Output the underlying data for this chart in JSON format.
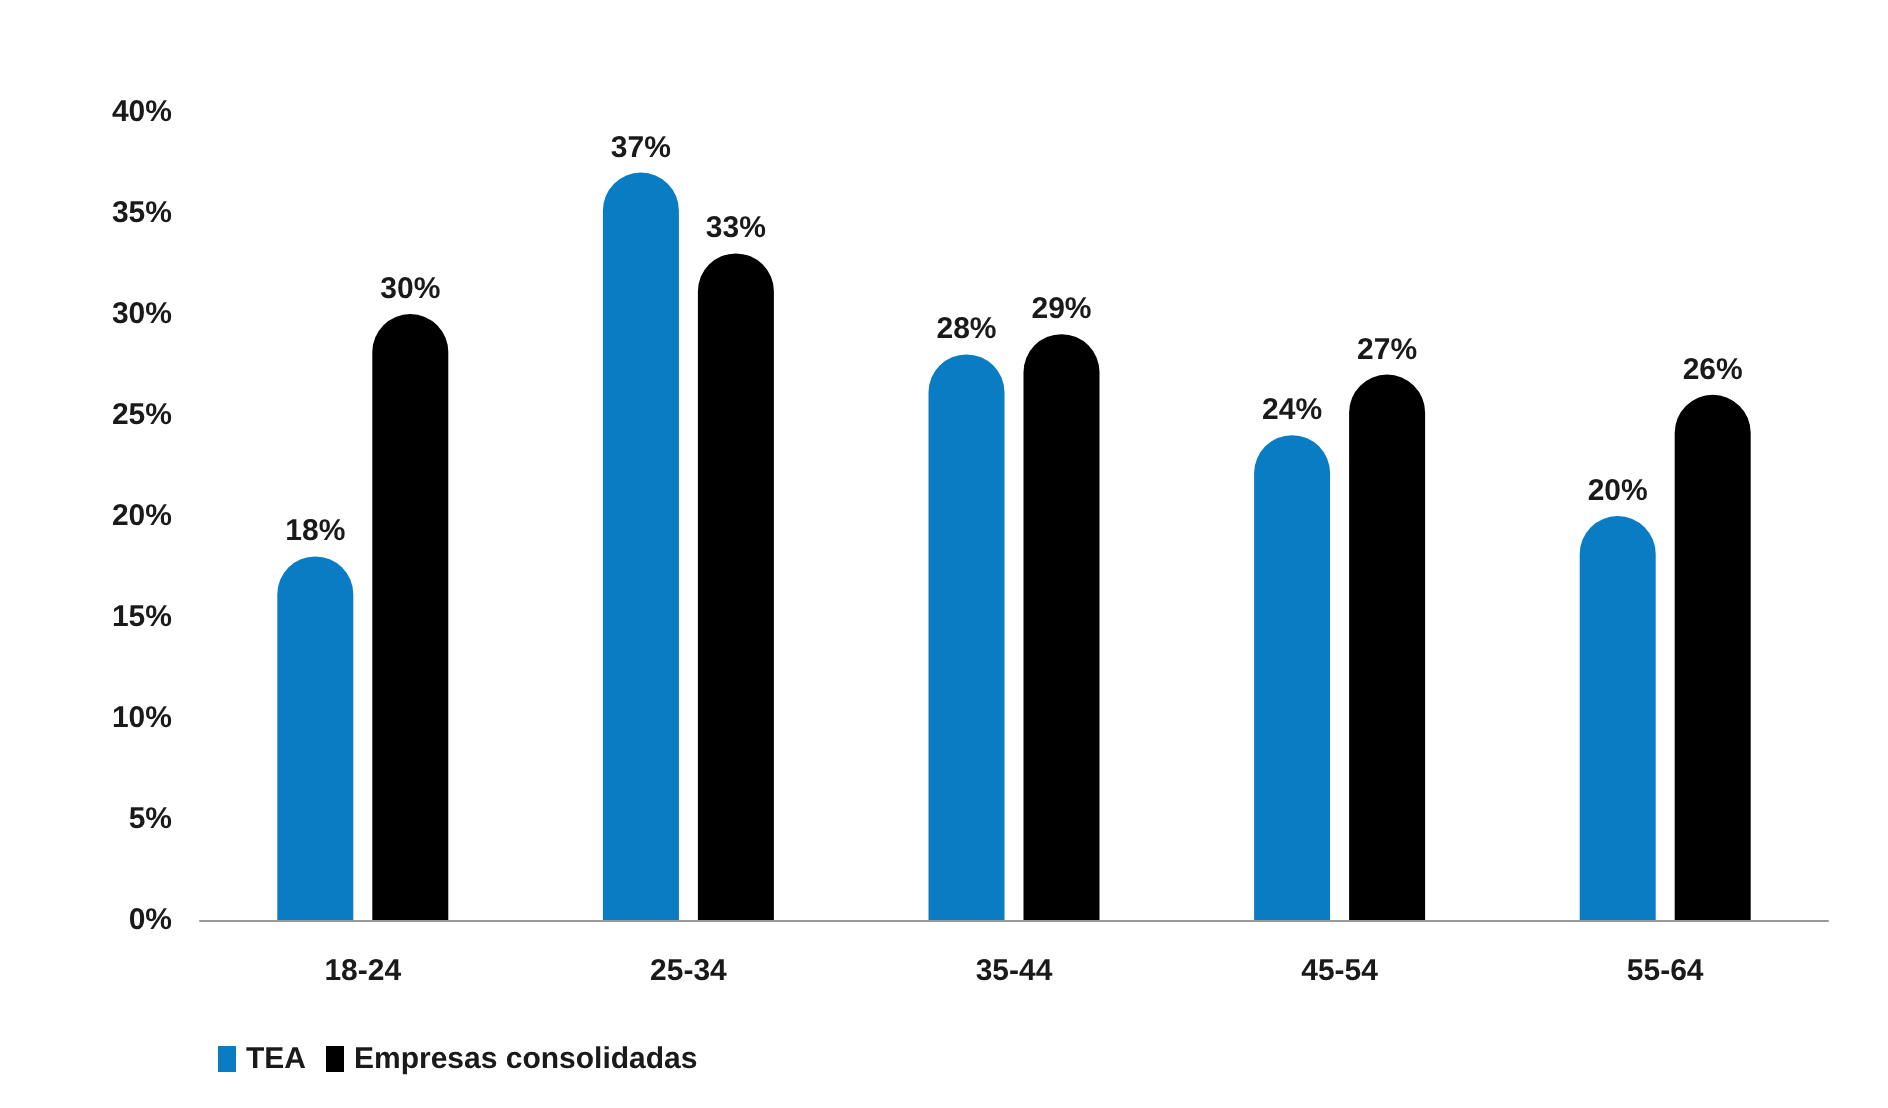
{
  "chart_data": {
    "type": "bar",
    "categories": [
      "18-24",
      "25-34",
      "35-44",
      "45-54",
      "55-64"
    ],
    "series": [
      {
        "name": "TEA",
        "color": "#0a7cc4",
        "values": [
          18,
          37,
          28,
          24,
          20
        ],
        "value_labels": [
          "18%",
          "37%",
          "28%",
          "24%",
          "20%"
        ]
      },
      {
        "name": "Empresas consolidadas",
        "color": "#000000",
        "values": [
          30,
          33,
          29,
          27,
          26
        ],
        "value_labels": [
          "30%",
          "33%",
          "29%",
          "27%",
          "26%"
        ]
      }
    ],
    "ylim": [
      0,
      40
    ],
    "yticks": [
      {
        "value": 0,
        "label": "0%"
      },
      {
        "value": 5,
        "label": "5%"
      },
      {
        "value": 10,
        "label": "10%"
      },
      {
        "value": 15,
        "label": "15%"
      },
      {
        "value": 20,
        "label": "20%"
      },
      {
        "value": 25,
        "label": "25%"
      },
      {
        "value": 30,
        "label": "30%"
      },
      {
        "value": 35,
        "label": "35%"
      },
      {
        "value": 40,
        "label": "40%"
      }
    ],
    "grid": false,
    "legend": "bottom left"
  }
}
